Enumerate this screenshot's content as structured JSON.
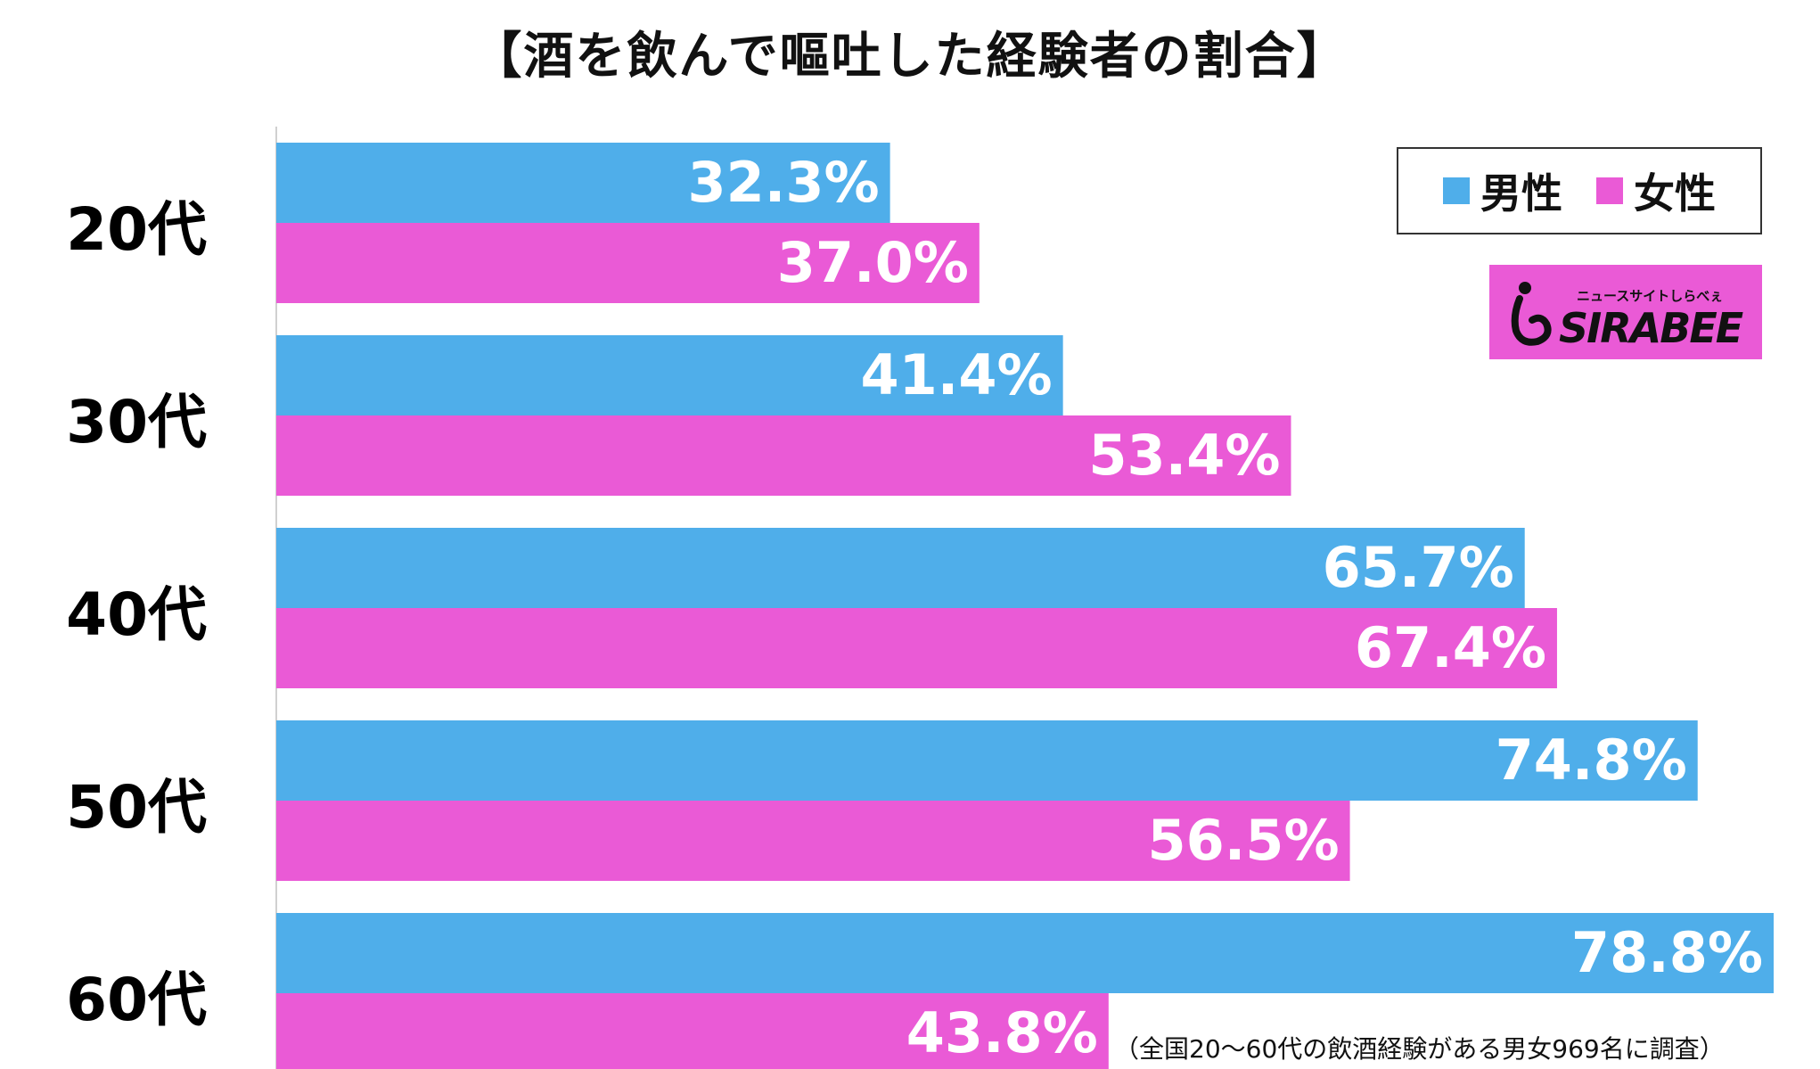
{
  "chart_data": {
    "type": "bar",
    "orientation": "horizontal",
    "title": "【酒を飲んで嘔吐した経験者の割合】",
    "categories": [
      "20代",
      "30代",
      "40代",
      "50代",
      "60代"
    ],
    "series": [
      {
        "name": "男性",
        "color": "#4faeea",
        "values": [
          32.3,
          41.4,
          65.7,
          74.8,
          78.8
        ],
        "labels": [
          "32.3%",
          "41.4%",
          "65.7%",
          "74.8%",
          "78.8%"
        ]
      },
      {
        "name": "女性",
        "color": "#ea5ad6",
        "values": [
          37.0,
          53.4,
          67.4,
          56.5,
          43.8
        ],
        "labels": [
          "37.0%",
          "53.4%",
          "67.4%",
          "56.5%",
          "43.8%"
        ]
      }
    ],
    "xlim": [
      0,
      78.8
    ],
    "grid": false,
    "legend_position": "top-right"
  },
  "logo": {
    "tagline": "ニュースサイトしらべぇ",
    "name": "SIRABEE",
    "mark_icon": "i-mark-icon"
  },
  "footnote": "（全国20〜60代の飲酒経験がある男女969名に調査）"
}
